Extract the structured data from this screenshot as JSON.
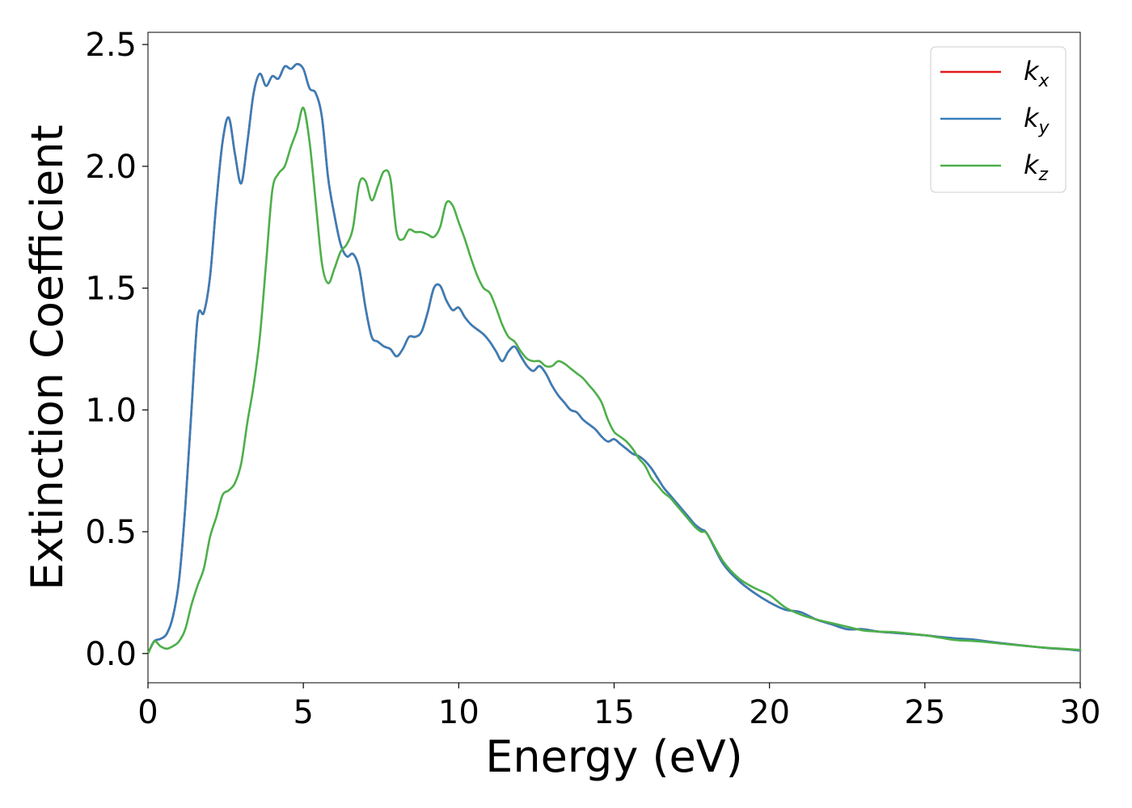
{
  "chart_data": {
    "type": "line",
    "xlabel": "Energy (eV)",
    "ylabel": "Extinction Coefficient",
    "xlim": [
      0,
      30
    ],
    "ylim": [
      -0.12,
      2.55
    ],
    "xticks": [
      0,
      5,
      10,
      15,
      20,
      25,
      30
    ],
    "xtick_labels": [
      "0",
      "5",
      "10",
      "15",
      "20",
      "25",
      "30"
    ],
    "yticks": [
      0.0,
      0.5,
      1.0,
      1.5,
      2.0,
      2.5
    ],
    "ytick_labels": [
      "0.0",
      "0.5",
      "1.0",
      "1.5",
      "2.0",
      "2.5"
    ],
    "grid": false,
    "legend_position": "top-right",
    "series": [
      {
        "name": "kx",
        "label_base": "k",
        "label_sub": "x",
        "color": "#e41a1c",
        "x": [
          0,
          0.2,
          0.4,
          0.6,
          0.8,
          1.0,
          1.2,
          1.4,
          1.6,
          1.8,
          2.0,
          2.2,
          2.4,
          2.6,
          2.8,
          3.0,
          3.2,
          3.4,
          3.6,
          3.8,
          4.0,
          4.2,
          4.4,
          4.6,
          4.8,
          5.0,
          5.2,
          5.4,
          5.6,
          5.8,
          6.0,
          6.2,
          6.4,
          6.6,
          6.8,
          7.0,
          7.2,
          7.4,
          7.6,
          7.8,
          8.0,
          8.2,
          8.4,
          8.6,
          8.8,
          9.0,
          9.2,
          9.4,
          9.6,
          9.8,
          10.0,
          10.2,
          10.4,
          10.6,
          10.8,
          11.0,
          11.2,
          11.4,
          11.6,
          11.8,
          12.0,
          12.2,
          12.4,
          12.6,
          12.8,
          13.0,
          13.2,
          13.4,
          13.6,
          13.8,
          14.0,
          14.2,
          14.4,
          14.6,
          14.8,
          15.0,
          15.2,
          15.4,
          15.6,
          15.8,
          16.0,
          16.2,
          16.4,
          16.6,
          16.8,
          17.0,
          17.2,
          17.4,
          17.6,
          17.8,
          18.0,
          18.5,
          19.0,
          19.5,
          20.0,
          20.5,
          21.0,
          21.5,
          22.0,
          22.5,
          23.0,
          23.5,
          24.0,
          24.5,
          25.0,
          25.5,
          26.0,
          26.5,
          27.0,
          27.5,
          28.0,
          28.5,
          29.0,
          29.5,
          30.0
        ],
        "y": [
          0.0,
          0.05,
          0.06,
          0.08,
          0.15,
          0.3,
          0.6,
          1.0,
          1.38,
          1.4,
          1.55,
          1.85,
          2.1,
          2.2,
          2.05,
          1.93,
          2.1,
          2.3,
          2.38,
          2.33,
          2.37,
          2.36,
          2.41,
          2.4,
          2.42,
          2.4,
          2.32,
          2.3,
          2.2,
          1.95,
          1.8,
          1.68,
          1.63,
          1.64,
          1.58,
          1.42,
          1.3,
          1.28,
          1.26,
          1.25,
          1.22,
          1.25,
          1.3,
          1.3,
          1.32,
          1.4,
          1.5,
          1.51,
          1.45,
          1.41,
          1.42,
          1.38,
          1.35,
          1.33,
          1.31,
          1.28,
          1.24,
          1.2,
          1.24,
          1.26,
          1.22,
          1.18,
          1.16,
          1.18,
          1.15,
          1.1,
          1.06,
          1.03,
          1.0,
          0.99,
          0.96,
          0.94,
          0.92,
          0.89,
          0.87,
          0.88,
          0.86,
          0.84,
          0.82,
          0.81,
          0.79,
          0.76,
          0.72,
          0.68,
          0.65,
          0.62,
          0.59,
          0.56,
          0.53,
          0.51,
          0.49,
          0.37,
          0.3,
          0.25,
          0.21,
          0.18,
          0.17,
          0.14,
          0.12,
          0.1,
          0.1,
          0.09,
          0.085,
          0.08,
          0.075,
          0.068,
          0.062,
          0.058,
          0.05,
          0.042,
          0.035,
          0.028,
          0.022,
          0.018,
          0.012
        ]
      },
      {
        "name": "ky",
        "label_base": "k",
        "label_sub": "y",
        "color": "#377eb8",
        "x": [
          0,
          0.2,
          0.4,
          0.6,
          0.8,
          1.0,
          1.2,
          1.4,
          1.6,
          1.8,
          2.0,
          2.2,
          2.4,
          2.6,
          2.8,
          3.0,
          3.2,
          3.4,
          3.6,
          3.8,
          4.0,
          4.2,
          4.4,
          4.6,
          4.8,
          5.0,
          5.2,
          5.4,
          5.6,
          5.8,
          6.0,
          6.2,
          6.4,
          6.6,
          6.8,
          7.0,
          7.2,
          7.4,
          7.6,
          7.8,
          8.0,
          8.2,
          8.4,
          8.6,
          8.8,
          9.0,
          9.2,
          9.4,
          9.6,
          9.8,
          10.0,
          10.2,
          10.4,
          10.6,
          10.8,
          11.0,
          11.2,
          11.4,
          11.6,
          11.8,
          12.0,
          12.2,
          12.4,
          12.6,
          12.8,
          13.0,
          13.2,
          13.4,
          13.6,
          13.8,
          14.0,
          14.2,
          14.4,
          14.6,
          14.8,
          15.0,
          15.2,
          15.4,
          15.6,
          15.8,
          16.0,
          16.2,
          16.4,
          16.6,
          16.8,
          17.0,
          17.2,
          17.4,
          17.6,
          17.8,
          18.0,
          18.5,
          19.0,
          19.5,
          20.0,
          20.5,
          21.0,
          21.5,
          22.0,
          22.5,
          23.0,
          23.5,
          24.0,
          24.5,
          25.0,
          25.5,
          26.0,
          26.5,
          27.0,
          27.5,
          28.0,
          28.5,
          29.0,
          29.5,
          30.0
        ],
        "y": [
          0.0,
          0.05,
          0.06,
          0.08,
          0.15,
          0.3,
          0.6,
          1.0,
          1.38,
          1.4,
          1.55,
          1.85,
          2.1,
          2.2,
          2.05,
          1.93,
          2.1,
          2.3,
          2.38,
          2.33,
          2.37,
          2.36,
          2.41,
          2.4,
          2.42,
          2.4,
          2.32,
          2.3,
          2.2,
          1.95,
          1.8,
          1.68,
          1.63,
          1.64,
          1.58,
          1.42,
          1.3,
          1.28,
          1.26,
          1.25,
          1.22,
          1.25,
          1.3,
          1.3,
          1.32,
          1.4,
          1.5,
          1.51,
          1.45,
          1.41,
          1.42,
          1.38,
          1.35,
          1.33,
          1.31,
          1.28,
          1.24,
          1.2,
          1.24,
          1.26,
          1.22,
          1.18,
          1.16,
          1.18,
          1.15,
          1.1,
          1.06,
          1.03,
          1.0,
          0.99,
          0.96,
          0.94,
          0.92,
          0.89,
          0.87,
          0.88,
          0.86,
          0.84,
          0.82,
          0.81,
          0.79,
          0.76,
          0.72,
          0.68,
          0.65,
          0.62,
          0.59,
          0.56,
          0.53,
          0.51,
          0.49,
          0.37,
          0.3,
          0.25,
          0.21,
          0.18,
          0.17,
          0.14,
          0.12,
          0.1,
          0.1,
          0.09,
          0.085,
          0.08,
          0.075,
          0.068,
          0.062,
          0.058,
          0.05,
          0.042,
          0.035,
          0.028,
          0.022,
          0.018,
          0.012
        ]
      },
      {
        "name": "kz",
        "label_base": "k",
        "label_sub": "z",
        "color": "#4daf4a",
        "x": [
          0,
          0.2,
          0.4,
          0.6,
          0.8,
          1.0,
          1.2,
          1.4,
          1.6,
          1.8,
          2.0,
          2.2,
          2.4,
          2.6,
          2.8,
          3.0,
          3.2,
          3.4,
          3.6,
          3.8,
          4.0,
          4.2,
          4.4,
          4.6,
          4.8,
          5.0,
          5.2,
          5.4,
          5.6,
          5.8,
          6.0,
          6.2,
          6.4,
          6.6,
          6.8,
          7.0,
          7.2,
          7.4,
          7.6,
          7.8,
          8.0,
          8.2,
          8.4,
          8.6,
          8.8,
          9.0,
          9.2,
          9.4,
          9.6,
          9.8,
          10.0,
          10.2,
          10.4,
          10.6,
          10.8,
          11.0,
          11.2,
          11.4,
          11.6,
          11.8,
          12.0,
          12.2,
          12.4,
          12.6,
          12.8,
          13.0,
          13.2,
          13.4,
          13.6,
          13.8,
          14.0,
          14.2,
          14.4,
          14.6,
          14.8,
          15.0,
          15.2,
          15.4,
          15.6,
          15.8,
          16.0,
          16.2,
          16.4,
          16.6,
          16.8,
          17.0,
          17.2,
          17.4,
          17.6,
          17.8,
          18.0,
          18.5,
          19.0,
          19.5,
          20.0,
          20.5,
          21.0,
          21.5,
          22.0,
          22.5,
          23.0,
          23.5,
          24.0,
          24.5,
          25.0,
          25.5,
          26.0,
          26.5,
          27.0,
          27.5,
          28.0,
          28.5,
          29.0,
          29.5,
          30.0
        ],
        "y": [
          0.0,
          0.05,
          0.03,
          0.02,
          0.03,
          0.05,
          0.1,
          0.2,
          0.28,
          0.35,
          0.48,
          0.56,
          0.65,
          0.67,
          0.7,
          0.78,
          0.95,
          1.1,
          1.3,
          1.6,
          1.9,
          1.97,
          2.0,
          2.08,
          2.15,
          2.24,
          2.1,
          1.85,
          1.6,
          1.52,
          1.58,
          1.65,
          1.68,
          1.75,
          1.93,
          1.94,
          1.86,
          1.92,
          1.98,
          1.95,
          1.73,
          1.7,
          1.74,
          1.73,
          1.73,
          1.72,
          1.71,
          1.75,
          1.85,
          1.84,
          1.77,
          1.7,
          1.62,
          1.55,
          1.5,
          1.48,
          1.42,
          1.35,
          1.3,
          1.28,
          1.24,
          1.21,
          1.2,
          1.2,
          1.18,
          1.18,
          1.2,
          1.19,
          1.17,
          1.15,
          1.13,
          1.1,
          1.07,
          1.03,
          0.96,
          0.91,
          0.89,
          0.87,
          0.84,
          0.8,
          0.77,
          0.72,
          0.69,
          0.66,
          0.64,
          0.61,
          0.58,
          0.55,
          0.52,
          0.5,
          0.49,
          0.38,
          0.31,
          0.27,
          0.24,
          0.19,
          0.16,
          0.14,
          0.125,
          0.11,
          0.095,
          0.09,
          0.088,
          0.082,
          0.075,
          0.065,
          0.055,
          0.052,
          0.047,
          0.04,
          0.034,
          0.028,
          0.023,
          0.019,
          0.015
        ]
      }
    ]
  }
}
